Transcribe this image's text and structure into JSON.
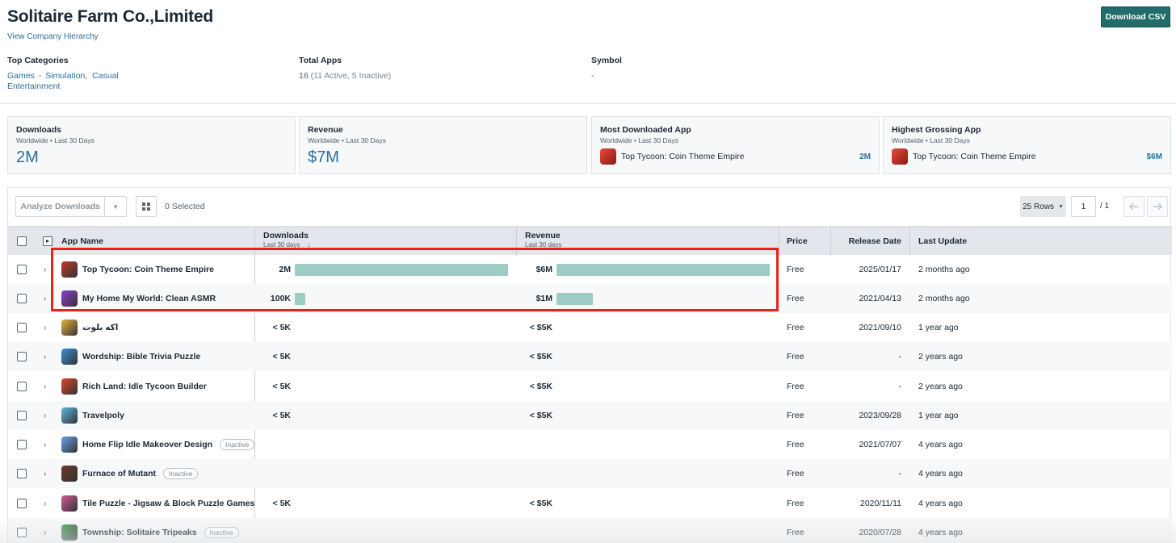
{
  "header": {
    "company_name": "Solitaire Farm Co.,Limited",
    "hierarchy_link": "View Company Hierarchy",
    "download_csv": "Download CSV"
  },
  "meta": {
    "top_categories_label": "Top Categories",
    "categories": [
      "Games",
      "Simulation",
      "Casual",
      "Entertainment"
    ],
    "category_separators": [
      "-",
      ","
    ],
    "total_apps_label": "Total Apps",
    "total_apps_value": "16",
    "total_apps_detail": "(11 Active, 5 Inactive)",
    "symbol_label": "Symbol",
    "symbol_value": "-"
  },
  "stats": [
    {
      "label": "Downloads",
      "sub": "Worldwide • Last 30 Days",
      "value": "2M"
    },
    {
      "label": "Revenue",
      "sub": "Worldwide • Last 30 Days",
      "value": "$7M"
    },
    {
      "label": "Most Downloaded App",
      "sub": "Worldwide • Last 30 Days",
      "app": "Top Tycoon: Coin Theme Empire",
      "value": "2M"
    },
    {
      "label": "Highest Grossing App",
      "sub": "Worldwide • Last 30 Days",
      "app": "Top Tycoon: Coin Theme Empire",
      "value": "$6M"
    }
  ],
  "toolbar": {
    "analyze_label": "Analyze Downloads",
    "selected": "0 Selected",
    "rows_label": "25 Rows",
    "page_value": "1",
    "page_total": "/  1"
  },
  "columns": {
    "app_name": "App Name",
    "downloads": "Downloads",
    "downloads_sub": "Last 30 days",
    "revenue": "Revenue",
    "revenue_sub": "Last 30 days",
    "price": "Price",
    "release_date": "Release Date",
    "last_update": "Last Update"
  },
  "colors": {
    "accent": "#226c6a",
    "link": "#2a6f9b",
    "bar": "#9dccc4",
    "highlight": "#ec2019"
  },
  "rows": [
    {
      "name": "Top Tycoon: Coin Theme Empire",
      "downloads": "2M",
      "downloads_share": 1.0,
      "revenue": "$6M",
      "revenue_share": 1.0,
      "price": "Free",
      "release": "2025/01/17",
      "update": "2 months ago",
      "badge": "",
      "icon_color": "#c0392b"
    },
    {
      "name": "My Home My World: Clean ASMR",
      "downloads": "100K",
      "downloads_share": 0.05,
      "revenue": "$1M",
      "revenue_share": 0.17,
      "price": "Free",
      "release": "2021/04/13",
      "update": "2 months ago",
      "badge": "",
      "icon_color": "#8e3fd1"
    },
    {
      "name": "اكه بلوت",
      "downloads": "< 5K",
      "downloads_share": 0,
      "revenue": "< $5K",
      "revenue_share": 0,
      "price": "Free",
      "release": "2021/09/10",
      "update": "1 year ago",
      "badge": "",
      "icon_color": "#e7b23c"
    },
    {
      "name": "Wordship: Bible Trivia Puzzle",
      "downloads": "< 5K",
      "downloads_share": 0,
      "revenue": "< $5K",
      "revenue_share": 0,
      "price": "Free",
      "release": "-",
      "update": "2 years ago",
      "badge": "",
      "icon_color": "#3b8fd6"
    },
    {
      "name": "Rich Land: Idle Tycoon Builder",
      "downloads": "< 5K",
      "downloads_share": 0,
      "revenue": "< $5K",
      "revenue_share": 0,
      "price": "Free",
      "release": "-",
      "update": "2 years ago",
      "badge": "",
      "icon_color": "#d9482b"
    },
    {
      "name": "Travelpoly",
      "downloads": "< 5K",
      "downloads_share": 0,
      "revenue": "< $5K",
      "revenue_share": 0,
      "price": "Free",
      "release": "2023/09/28",
      "update": "1 year ago",
      "badge": "",
      "icon_color": "#5cb8e6"
    },
    {
      "name": "Home Flip Idle Makeover Design",
      "downloads": "",
      "downloads_share": 0,
      "revenue": "",
      "revenue_share": 0,
      "price": "Free",
      "release": "2021/07/07",
      "update": "4 years ago",
      "badge": "Inactive",
      "icon_color": "#6aa2e8"
    },
    {
      "name": "Furnace of Mutant",
      "downloads": "",
      "downloads_share": 0,
      "revenue": "",
      "revenue_share": 0,
      "price": "Free",
      "release": "-",
      "update": "4 years ago",
      "badge": "Inactive",
      "icon_color": "#6b3a2a"
    },
    {
      "name": "Tile Puzzle - Jigsaw & Block Puzzle Games",
      "downloads": "< 5K",
      "downloads_share": 0,
      "revenue": "< $5K",
      "revenue_share": 0,
      "price": "Free",
      "release": "2020/11/11",
      "update": "4 years ago",
      "badge": "",
      "icon_color": "#d45a9a"
    },
    {
      "name": "Township: Solitaire Tripeaks",
      "downloads": "",
      "downloads_share": 0,
      "revenue": "",
      "revenue_share": 0,
      "price": "Free",
      "release": "2020/07/28",
      "update": "4 years ago",
      "badge": "Inactive",
      "icon_color": "#4aa85c"
    }
  ]
}
